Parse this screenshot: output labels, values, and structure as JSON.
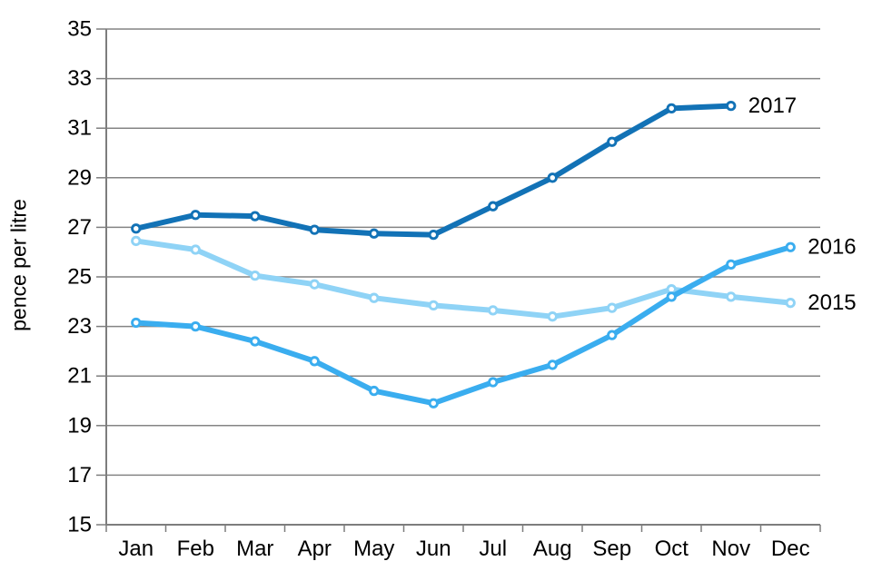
{
  "chart_data": {
    "type": "line",
    "title": "",
    "xlabel": "",
    "ylabel": "pence per litre",
    "categories": [
      "Jan",
      "Feb",
      "Mar",
      "Apr",
      "May",
      "Jun",
      "Jul",
      "Aug",
      "Sep",
      "Oct",
      "Nov",
      "Dec"
    ],
    "ylim": [
      15,
      35
    ],
    "ytick_step": 2,
    "yticks": [
      35,
      33,
      31,
      29,
      27,
      25,
      23,
      21,
      19,
      17,
      15
    ],
    "grid": true,
    "legend_position": "end-of-line-labels",
    "series": [
      {
        "name": "2015",
        "color": "#8FD3F6",
        "values": [
          26.45,
          26.1,
          25.05,
          24.7,
          24.15,
          23.85,
          23.65,
          23.4,
          23.75,
          24.5,
          24.2,
          23.95
        ]
      },
      {
        "name": "2016",
        "color": "#3AADEF",
        "values": [
          23.15,
          23.0,
          22.4,
          21.6,
          20.4,
          19.9,
          20.75,
          21.45,
          22.65,
          24.2,
          25.5,
          26.2
        ]
      },
      {
        "name": "2017",
        "color": "#1272B6",
        "values": [
          26.95,
          27.5,
          27.45,
          26.9,
          26.75,
          26.7,
          27.85,
          29.0,
          30.45,
          31.8,
          31.9,
          null
        ]
      }
    ],
    "style": {
      "grid_color": "#848484",
      "axis_color": "#7d7d7d",
      "text_color": "#000000",
      "background": "#ffffff"
    }
  }
}
